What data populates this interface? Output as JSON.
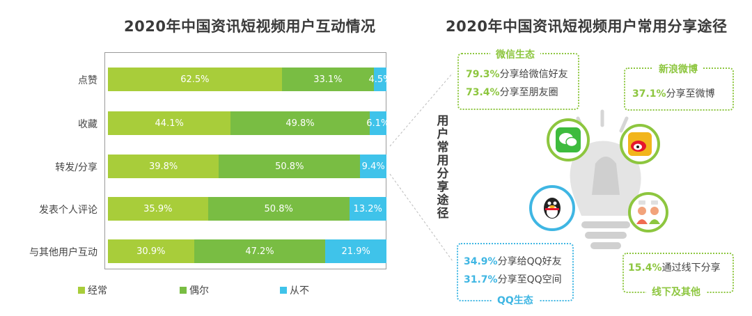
{
  "left_title": "2020年中国资讯短视频用户互动情况",
  "right_title": "2020年中国资讯短视频用户常用分享途径",
  "side_label": "用户常用分享途径",
  "colors": {
    "often": "#a8cd3a",
    "sometimes": "#79bd43",
    "never": "#3fc3ea",
    "accent_green": "#8dc63f",
    "accent_blue": "#3fb6e3"
  },
  "chart_data": {
    "type": "bar",
    "orientation": "horizontal-stacked-percent",
    "categories": [
      "点赞",
      "收藏",
      "转发/分享",
      "发表个人评论",
      "与其他用户互动"
    ],
    "series": [
      {
        "name": "经常",
        "values": [
          62.5,
          44.1,
          39.8,
          35.9,
          30.9
        ],
        "labels": [
          "62.5%",
          "44.1%",
          "39.8%",
          "35.9%",
          "30.9%"
        ]
      },
      {
        "name": "偶尔",
        "values": [
          33.1,
          49.8,
          50.8,
          50.8,
          47.2
        ],
        "labels": [
          "33.1%",
          "49.8%",
          "50.8%",
          "50.8%",
          "47.2%"
        ]
      },
      {
        "name": "从不",
        "values": [
          4.5,
          6.1,
          9.4,
          13.2,
          21.9
        ],
        "labels": [
          "4.5%",
          "6.1%",
          "9.4%",
          "13.2%",
          "21.9%"
        ]
      }
    ],
    "legend_position": "bottom",
    "legend_marker": "■",
    "xlim": [
      0,
      100
    ]
  },
  "share": {
    "wechat": {
      "title": "微信生态",
      "items": [
        {
          "pct": "79.3%",
          "text": "分享给微信好友"
        },
        {
          "pct": "73.4%",
          "text": "分享至朋友圈"
        }
      ]
    },
    "weibo": {
      "title": "新浪微博",
      "items": [
        {
          "pct": "37.1%",
          "text": "分享至微博"
        }
      ]
    },
    "qq": {
      "title": "QQ生态",
      "items": [
        {
          "pct": "34.9%",
          "text": "分享给QQ好友"
        },
        {
          "pct": "31.7%",
          "text": "分享至QQ空间"
        }
      ]
    },
    "offline": {
      "title": "线下及其他",
      "items": [
        {
          "pct": "15.4%",
          "text": "通过线下分享"
        }
      ]
    }
  }
}
